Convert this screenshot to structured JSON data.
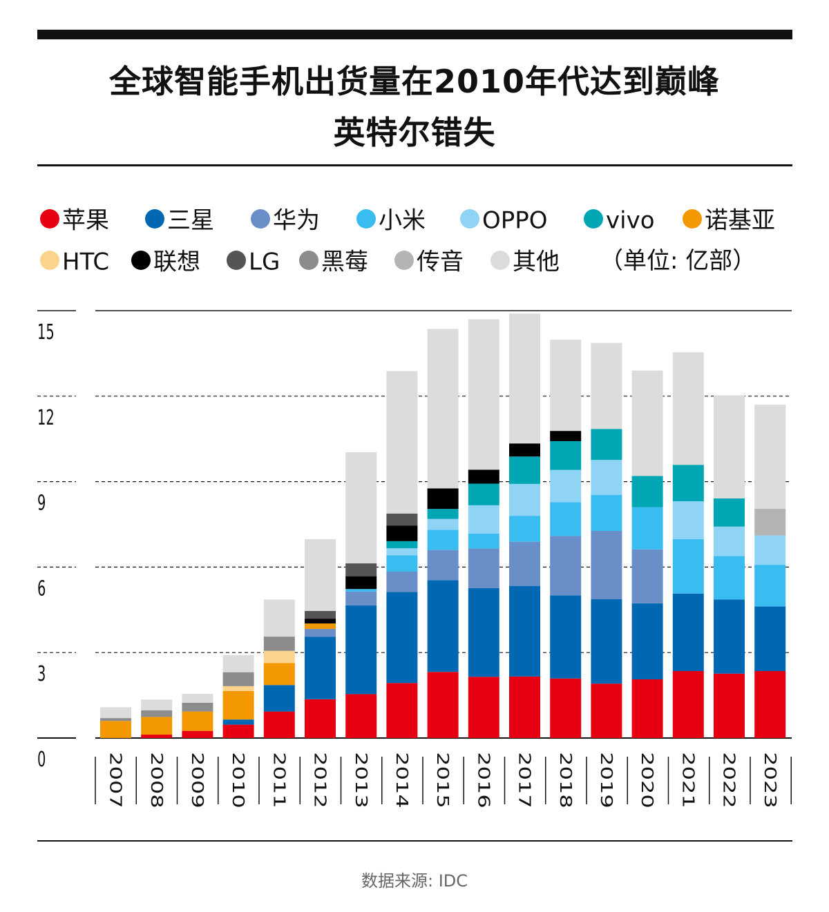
{
  "title_line1": "全球智能手机出货量在2010年代达到巅峰",
  "title_line2": "英特尔错失",
  "unit_note": "（单位: 亿部）",
  "source": "数据来源: IDC",
  "chart_data": {
    "type": "bar",
    "stacked": true,
    "ylim": [
      0,
      15
    ],
    "yticks": [
      0,
      3,
      6,
      9,
      12,
      15
    ],
    "grid": true,
    "legend_position": "top",
    "categories": [
      "2007",
      "2008",
      "2009",
      "2010",
      "2011",
      "2012",
      "2013",
      "2014",
      "2015",
      "2016",
      "2017",
      "2018",
      "2019",
      "2020",
      "2021",
      "2022",
      "2023"
    ],
    "series": [
      {
        "name": "苹果",
        "color": "#e60012",
        "values": [
          0.0,
          0.12,
          0.25,
          0.47,
          0.93,
          1.36,
          1.54,
          1.93,
          2.32,
          2.15,
          2.16,
          2.09,
          1.91,
          2.06,
          2.35,
          2.26,
          2.35
        ]
      },
      {
        "name": "三星",
        "color": "#0068b3",
        "values": [
          0.0,
          0.0,
          0.0,
          0.18,
          0.93,
          2.19,
          3.12,
          3.2,
          3.22,
          3.11,
          3.18,
          2.92,
          2.96,
          2.67,
          2.72,
          2.6,
          2.27
        ]
      },
      {
        "name": "华为",
        "color": "#6a8fc8",
        "values": [
          0.0,
          0.0,
          0.0,
          0.0,
          0.0,
          0.28,
          0.48,
          0.71,
          1.06,
          1.39,
          1.55,
          2.08,
          2.4,
          1.89,
          0.0,
          0.0,
          0.0
        ]
      },
      {
        "name": "小米",
        "color": "#39bcf0",
        "values": [
          0.0,
          0.0,
          0.0,
          0.0,
          0.0,
          0.0,
          0.09,
          0.57,
          0.71,
          0.53,
          0.91,
          1.19,
          1.26,
          1.48,
          1.91,
          1.53,
          1.46
        ]
      },
      {
        "name": "OPPO",
        "color": "#8fd3f5",
        "values": [
          0.0,
          0.0,
          0.0,
          0.0,
          0.0,
          0.0,
          0.0,
          0.25,
          0.38,
          0.99,
          1.12,
          1.13,
          1.23,
          0.0,
          1.33,
          1.03,
          1.03
        ]
      },
      {
        "name": "vivo",
        "color": "#00a6b4",
        "values": [
          0.0,
          0.0,
          0.0,
          0.0,
          0.0,
          0.0,
          0.0,
          0.25,
          0.35,
          0.76,
          0.96,
          1.01,
          1.09,
          1.1,
          1.28,
          0.99,
          0.0
        ]
      },
      {
        "name": "诺基亚",
        "color": "#f39800",
        "values": [
          0.6,
          0.62,
          0.68,
          1.0,
          0.77,
          0.19,
          0.0,
          0.0,
          0.0,
          0.0,
          0.0,
          0.0,
          0.0,
          0.0,
          0.0,
          0.0,
          0.0
        ]
      },
      {
        "name": "HTC",
        "color": "#fcd38c",
        "values": [
          0.0,
          0.0,
          0.0,
          0.17,
          0.43,
          0.0,
          0.0,
          0.0,
          0.0,
          0.0,
          0.0,
          0.0,
          0.0,
          0.0,
          0.0,
          0.0,
          0.0
        ]
      },
      {
        "name": "联想",
        "color": "#000000",
        "values": [
          0.0,
          0.0,
          0.0,
          0.0,
          0.0,
          0.17,
          0.45,
          0.55,
          0.72,
          0.49,
          0.46,
          0.36,
          0.0,
          0.0,
          0.0,
          0.0,
          0.0
        ]
      },
      {
        "name": "LG",
        "color": "#555555",
        "values": [
          0.0,
          0.0,
          0.0,
          0.0,
          0.0,
          0.27,
          0.45,
          0.42,
          0.0,
          0.0,
          0.0,
          0.0,
          0.0,
          0.0,
          0.0,
          0.0,
          0.0
        ]
      },
      {
        "name": "黑莓",
        "color": "#8c8c8c",
        "values": [
          0.1,
          0.23,
          0.31,
          0.49,
          0.5,
          0.0,
          0.0,
          0.0,
          0.0,
          0.0,
          0.0,
          0.0,
          0.0,
          0.0,
          0.0,
          0.0,
          0.0
        ]
      },
      {
        "name": "传音",
        "color": "#b4b4b4",
        "values": [
          0.0,
          0.0,
          0.0,
          0.0,
          0.0,
          0.0,
          0.0,
          0.0,
          0.0,
          0.0,
          0.0,
          0.0,
          0.0,
          0.0,
          0.0,
          0.0,
          0.94
        ]
      },
      {
        "name": "其他",
        "color": "#dcdcdc",
        "values": [
          0.38,
          0.38,
          0.31,
          0.6,
          1.3,
          2.52,
          3.9,
          5.0,
          5.6,
          5.28,
          4.56,
          3.2,
          3.02,
          3.7,
          3.95,
          3.62,
          3.65
        ]
      }
    ]
  }
}
